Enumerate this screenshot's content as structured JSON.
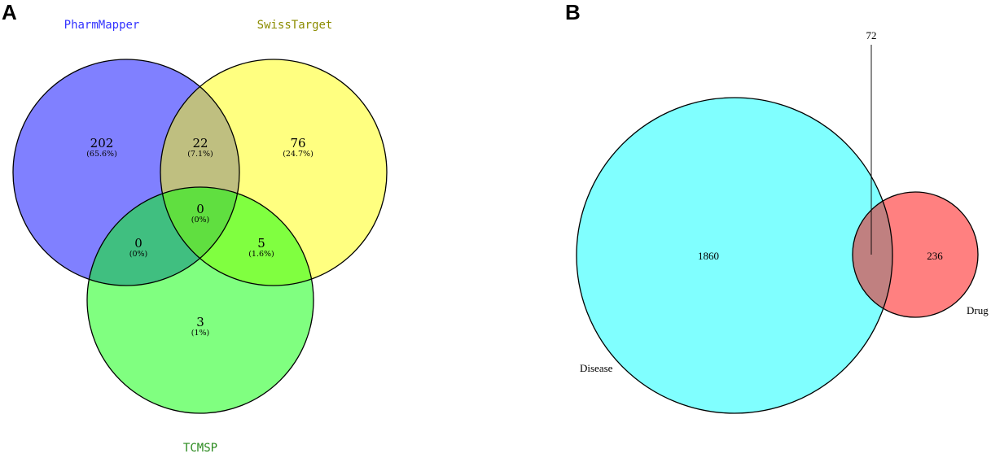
{
  "panelA": {
    "letter": "A",
    "sets": [
      {
        "label": "PharmMapper",
        "color": "#3333ff"
      },
      {
        "label": "SwissTarget",
        "color": "#8c8c00"
      },
      {
        "label": "TCMSP",
        "color": "#2a8a1e"
      }
    ],
    "regions": [
      {
        "id": "pharmmapper-only",
        "count": "202",
        "pct": "(65.6%)"
      },
      {
        "id": "pharmmapper-swisstarget",
        "count": "22",
        "pct": "(7.1%)"
      },
      {
        "id": "swisstarget-only",
        "count": "76",
        "pct": "(24.7%)"
      },
      {
        "id": "all-three",
        "count": "0",
        "pct": "(0%)"
      },
      {
        "id": "pharmmapper-tcmsp",
        "count": "0",
        "pct": "(0%)"
      },
      {
        "id": "swisstarget-tcmsp",
        "count": "5",
        "pct": "(1.6%)"
      },
      {
        "id": "tcmsp-only",
        "count": "3",
        "pct": "(1%)"
      }
    ]
  },
  "panelB": {
    "letter": "B",
    "sets": [
      {
        "label": "Disease",
        "color": "#80ffff"
      },
      {
        "label": "Drug",
        "color": "#ff8080"
      }
    ],
    "disease_only": "1860",
    "intersection": "72",
    "drug_only": "236"
  }
}
